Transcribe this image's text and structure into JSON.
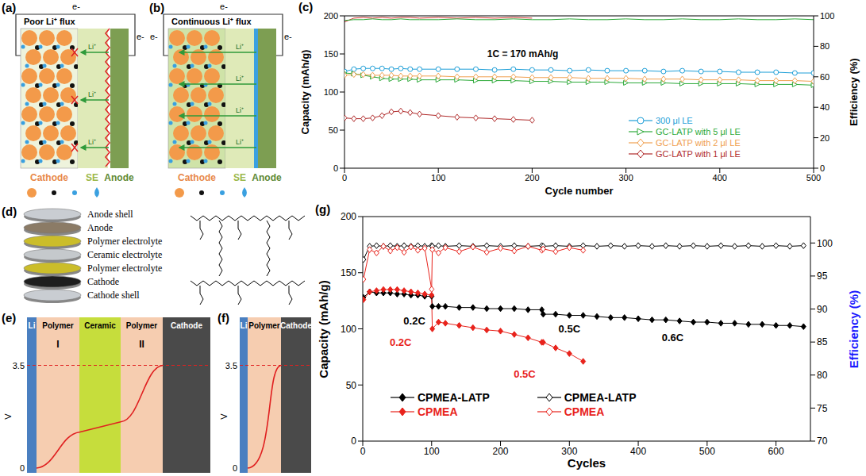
{
  "chart_data": [
    {
      "panel": "(c)",
      "type": "line",
      "x_label": "Cycle number",
      "y_label": "Capacity (mAh/g)",
      "y2_label": "Efficiency (%)",
      "xlim": [
        0,
        500
      ],
      "xticks": [
        0,
        100,
        200,
        300,
        400,
        500
      ],
      "ylim": [
        0,
        200
      ],
      "yticks": [
        0,
        50,
        100,
        150,
        200
      ],
      "y2lim": [
        0,
        100
      ],
      "y2ticks": [
        0,
        20,
        40,
        60,
        80,
        100
      ],
      "legend": "lower right",
      "annotations": [
        {
          "text": "1C = 170 mAh/g",
          "x": 190,
          "y": 150,
          "color": "#000000"
        }
      ],
      "x": [
        0,
        10,
        20,
        30,
        40,
        50,
        60,
        70,
        80,
        100,
        120,
        140,
        160,
        180,
        200,
        220,
        240,
        260,
        280,
        300,
        320,
        340,
        360,
        380,
        400,
        420,
        440,
        460,
        480,
        500
      ],
      "series": [
        {
          "name": "300 μl LE",
          "color": "#1e9fd8",
          "marker": "circle-open",
          "values": [
            127,
            130,
            131,
            131,
            131,
            130,
            131,
            130,
            130,
            130,
            130,
            130,
            129,
            130,
            129,
            129,
            128,
            129,
            128,
            128,
            128,
            127,
            128,
            127,
            127,
            126,
            126,
            126,
            125,
            125
          ]
        },
        {
          "name": "GC-LATP with 5 μl LE",
          "color": "#2eaa3a",
          "marker": "triangle-open",
          "values": [
            125,
            124,
            122,
            120,
            118,
            117,
            117,
            117,
            116,
            116,
            116,
            115,
            115,
            115,
            114,
            114,
            113,
            113,
            113,
            112,
            112,
            112,
            111,
            111,
            111,
            111,
            110,
            110,
            110,
            109
          ]
        },
        {
          "name": "GC-LATP with 2 μl LE",
          "color": "#f0a050",
          "marker": "diamond-open",
          "values": [
            122,
            123,
            123,
            122,
            122,
            122,
            121,
            121,
            121,
            121,
            120,
            120,
            120,
            120,
            119,
            119,
            119,
            118,
            118,
            118,
            117,
            117,
            117,
            116,
            116,
            116,
            115,
            115,
            115,
            114
          ]
        },
        {
          "name": "GC-LATP with 1 μl LE",
          "color": "#b02a2a",
          "marker": "diamond-open",
          "values": [
            66,
            65,
            65,
            66,
            69,
            74,
            75,
            73,
            71,
            69,
            67,
            66,
            65,
            64,
            63,
            null,
            null,
            null,
            null,
            null,
            null,
            null,
            null,
            null,
            null,
            null,
            null,
            null,
            null,
            null
          ]
        },
        {
          "color": "#d0302a",
          "axis": "y2",
          "marker": "none",
          "values": [
            96,
            98.5,
            99,
            98.5,
            99,
            98.5,
            99,
            99,
            98.5,
            99,
            98.5,
            99,
            98.5,
            99,
            98.5,
            null,
            null,
            null,
            null,
            null,
            null,
            null,
            null,
            null,
            null,
            null,
            null,
            null,
            null,
            null
          ]
        },
        {
          "color": "#2eaa3a",
          "axis": "y2",
          "marker": "none",
          "values": [
            97,
            97.5,
            97.5,
            98,
            97.5,
            97.5,
            98,
            97.5,
            97.5,
            97.5,
            98,
            97.5,
            97.5,
            98,
            97.5,
            97.5,
            98,
            97.5,
            97.5,
            98,
            97.5,
            97.5,
            98,
            97.5,
            97.5,
            98,
            97.5,
            97.5,
            98,
            97.5
          ]
        }
      ]
    },
    {
      "panel": "(g)",
      "type": "line",
      "x_label": "Cycles",
      "y_label": "Capacity (mAh/g)",
      "y2_label": "Efficiency (%)",
      "xlim": [
        0,
        650
      ],
      "xticks": [
        0,
        100,
        200,
        300,
        400,
        500,
        600
      ],
      "ylim": [
        0,
        200
      ],
      "yticks": [
        0,
        50,
        100,
        150,
        200
      ],
      "y2lim": [
        70,
        104
      ],
      "y2ticks": [
        70,
        75,
        80,
        85,
        90,
        95,
        100
      ],
      "legend": "bottom",
      "annotations": [
        {
          "text": "0.2C",
          "x": 75,
          "y": 107,
          "color": "#000000"
        },
        {
          "text": "0.2C",
          "x": 55,
          "y": 88,
          "color": "#e8231c"
        },
        {
          "text": "0.5C",
          "x": 300,
          "y": 100,
          "color": "#000000"
        },
        {
          "text": "0.6C",
          "x": 450,
          "y": 92,
          "color": "#000000"
        },
        {
          "text": "0.5C",
          "x": 235,
          "y": 60,
          "color": "#e8231c"
        }
      ],
      "x": [
        1,
        10,
        20,
        30,
        40,
        50,
        60,
        70,
        80,
        90,
        100,
        101,
        110,
        120,
        140,
        160,
        180,
        200,
        220,
        240,
        260,
        262,
        280,
        300,
        320,
        340,
        360,
        380,
        400,
        420,
        440,
        460,
        480,
        500,
        520,
        540,
        560,
        580,
        600,
        620,
        640
      ],
      "series": [
        {
          "name": "CPMEA-LATP",
          "color": "#000000",
          "marker": "diamond",
          "values": [
            128,
            133,
            132,
            132,
            132,
            131,
            131,
            130,
            130,
            129,
            129,
            120,
            120,
            120,
            119,
            119,
            118,
            118,
            118,
            117,
            117,
            113,
            113,
            112,
            112,
            111,
            110,
            110,
            109,
            108,
            108,
            107,
            106,
            106,
            105,
            105,
            104,
            104,
            103,
            103,
            102
          ]
        },
        {
          "name": "CPMEA-LATP",
          "color": "#000000",
          "marker": "diamond-open",
          "axis": "y2",
          "values": [
            97.5,
            99.5,
            99.6,
            99.5,
            99.6,
            99.5,
            99.6,
            99.5,
            99.6,
            99.5,
            99.6,
            99.5,
            99.6,
            99.5,
            99.6,
            99.5,
            99.6,
            99.5,
            99.6,
            99.5,
            99.6,
            99.5,
            99.6,
            99.5,
            99.6,
            99.5,
            99.6,
            99.5,
            99.6,
            99.5,
            99.6,
            99.5,
            99.6,
            99.5,
            99.6,
            99.5,
            99.6,
            99.5,
            99.6,
            99.5,
            99.6
          ]
        },
        {
          "name": "CPMEA",
          "color": "#e8231c",
          "marker": "diamond",
          "values": [
            126,
            133,
            134,
            135,
            135,
            135,
            134,
            133,
            132,
            131,
            130,
            100,
            106,
            105,
            103,
            101,
            99,
            98,
            95,
            92,
            88,
            88,
            83,
            78,
            71,
            null,
            null,
            null,
            null,
            null,
            null,
            null,
            null,
            null,
            null,
            null,
            null,
            null,
            null,
            null,
            null
          ]
        },
        {
          "name": "CPMEA",
          "color": "#e8231c",
          "marker": "diamond-open",
          "axis": "y2",
          "values": [
            94.5,
            99,
            98.5,
            99.5,
            98.8,
            99.3,
            98.6,
            99.4,
            98.9,
            99.2,
            93,
            99,
            98.5,
            99.3,
            98.7,
            99.4,
            98.6,
            99.2,
            98.8,
            99.5,
            98.9,
            99.1,
            98.7,
            99.3,
            98.9,
            null,
            null,
            null,
            null,
            null,
            null,
            null,
            null,
            null,
            null,
            null,
            null,
            null,
            null,
            null,
            null
          ]
        }
      ]
    }
  ],
  "diagrams": {
    "a": {
      "label": "(a)",
      "title": "Poor Li⁺ flux",
      "electron_labels": [
        "e-",
        "e-"
      ],
      "ion_labels": [
        "Li⁺",
        "Li⁺",
        "Li⁺"
      ],
      "regions": [
        "Cathode",
        "SE",
        "Anode"
      ]
    },
    "b": {
      "label": "(b)",
      "title": "Continuous Li⁺ flux",
      "electron_labels": [
        "e-",
        "e-",
        "e-"
      ],
      "ion_labels": [
        "Li⁺",
        "Li⁺",
        "Li⁺",
        "Li⁺"
      ],
      "regions": [
        "Cathode",
        "SE",
        "Anode"
      ]
    },
    "d": {
      "label": "(d)",
      "layers": [
        "Anode shell",
        "Anode",
        "Polymer electrolyte",
        "Ceramic electrolyte",
        "Polymer electrolyte",
        "Cathode",
        "Cathode shell"
      ]
    },
    "e": {
      "label": "(e)",
      "axis_label": "V",
      "ticks": [
        3.5,
        0
      ],
      "columns": [
        "Li",
        "Polymer",
        "Ceramic",
        "Polymer",
        "Cathode"
      ],
      "column_marks": [
        "I",
        "II"
      ]
    },
    "f": {
      "label": "(f)",
      "axis_label": "V",
      "ticks": [
        3.5,
        0
      ],
      "columns": [
        "Li",
        "Polymer",
        "Cathode"
      ]
    }
  }
}
